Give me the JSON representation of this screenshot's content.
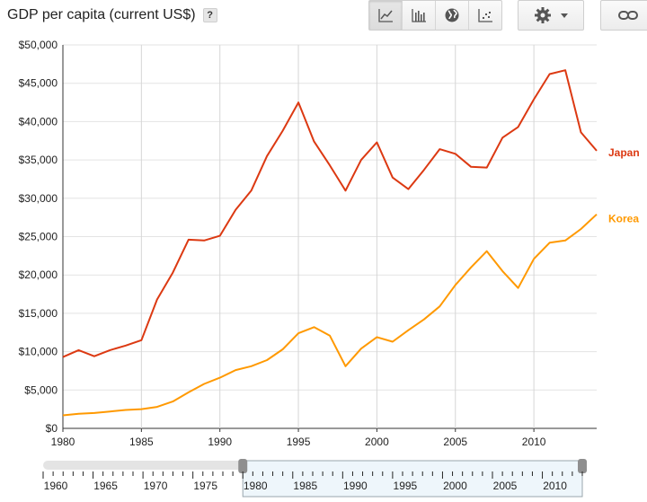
{
  "header": {
    "title": "GDP per capita (current US$)",
    "help_label": "?"
  },
  "toolbar": {
    "views": [
      {
        "name": "line-chart",
        "active": true
      },
      {
        "name": "bar-chart",
        "active": false
      },
      {
        "name": "map",
        "active": false
      },
      {
        "name": "scatter",
        "active": false
      }
    ]
  },
  "chart_data": {
    "type": "line",
    "title": "GDP per capita (current US$)",
    "xlabel": "",
    "ylabel": "",
    "xlim": [
      1980,
      2014
    ],
    "ylim": [
      0,
      50000
    ],
    "x_ticks": [
      1980,
      1985,
      1990,
      1995,
      2000,
      2005,
      2010
    ],
    "y_ticks": [
      0,
      5000,
      10000,
      15000,
      20000,
      25000,
      30000,
      35000,
      40000,
      45000,
      50000
    ],
    "y_tick_labels": [
      "$0",
      "$5,000",
      "$10,000",
      "$15,000",
      "$20,000",
      "$25,000",
      "$30,000",
      "$35,000",
      "$40,000",
      "$45,000",
      "$50,000"
    ],
    "grid": true,
    "legend": "inline-right",
    "x": [
      1980,
      1981,
      1982,
      1983,
      1984,
      1985,
      1986,
      1987,
      1988,
      1989,
      1990,
      1991,
      1992,
      1993,
      1994,
      1995,
      1996,
      1997,
      1998,
      1999,
      2000,
      2001,
      2002,
      2003,
      2004,
      2005,
      2006,
      2007,
      2008,
      2009,
      2010,
      2011,
      2012,
      2013,
      2014
    ],
    "series": [
      {
        "name": "Japan",
        "color": "#dc3912",
        "values": [
          9300,
          10200,
          9400,
          10200,
          10800,
          11500,
          16800,
          20300,
          24600,
          24500,
          25100,
          28500,
          31000,
          35500,
          38800,
          42500,
          37400,
          34300,
          31000,
          35000,
          37300,
          32700,
          31200,
          33700,
          36400,
          35800,
          34100,
          34000,
          37900,
          39300,
          42900,
          46200,
          46700,
          38600,
          36200
        ]
      },
      {
        "name": "Korea",
        "color": "#ff9900",
        "values": [
          1700,
          1900,
          2000,
          2200,
          2400,
          2500,
          2800,
          3500,
          4700,
          5800,
          6600,
          7600,
          8100,
          8900,
          10300,
          12400,
          13200,
          12100,
          8100,
          10400,
          11900,
          11300,
          12800,
          14200,
          15900,
          18700,
          21000,
          23100,
          20500,
          18300,
          22100,
          24200,
          24500,
          26000,
          27900
        ]
      }
    ]
  },
  "timeline": {
    "years": [
      "1960",
      "1965",
      "1970",
      "1975",
      "1980",
      "1985",
      "1990",
      "1995",
      "2000",
      "2005",
      "2010"
    ],
    "range_start": 1980,
    "range_end": 2014,
    "min_year": 1960,
    "max_year": 2014
  }
}
